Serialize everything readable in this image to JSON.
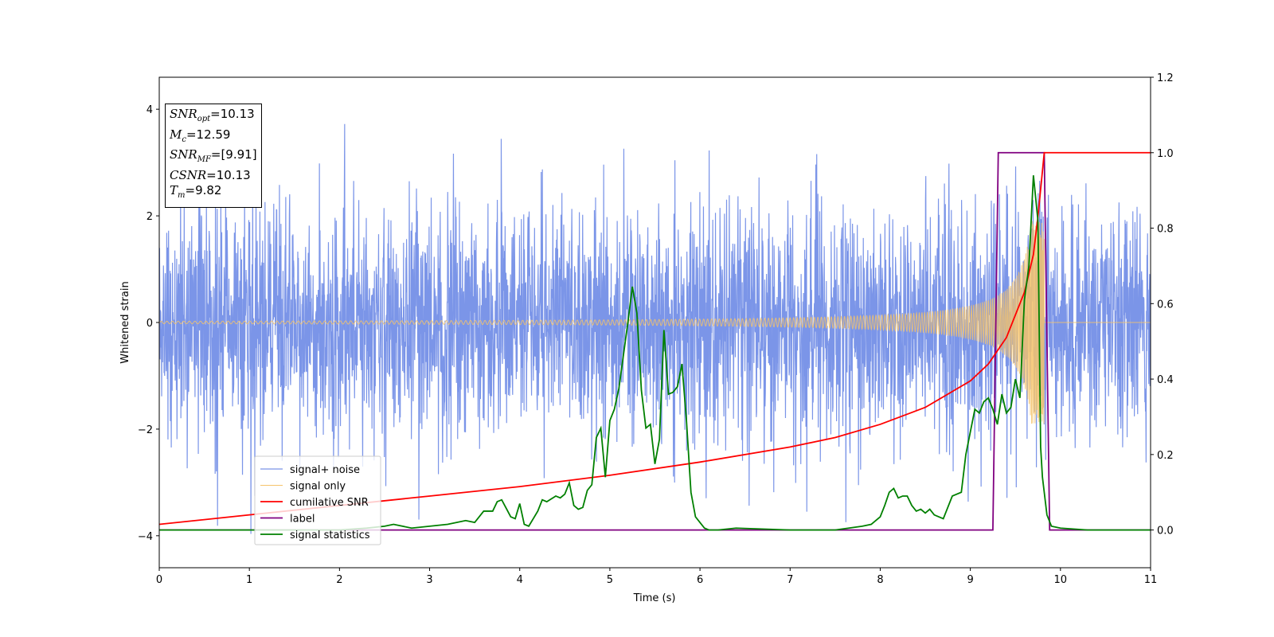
{
  "chart_data": {
    "type": "line",
    "xlabel": "Time (s)",
    "ylabel": "Whitened strain",
    "xlim": [
      0,
      11
    ],
    "ylim_left": [
      -4.6,
      4.6
    ],
    "ylim_right": [
      -0.1,
      1.2
    ],
    "x_ticks": [
      "0",
      "1",
      "2",
      "3",
      "4",
      "5",
      "6",
      "7",
      "8",
      "9",
      "10",
      "11"
    ],
    "y_ticks_left": [
      "4",
      "2",
      "0",
      "−2",
      "−4"
    ],
    "y_ticks_right": [
      "1.2",
      "1.0",
      "0.8",
      "0.6",
      "0.4",
      "0.2",
      "0.0"
    ],
    "grid": false,
    "legend_position": "lower-left",
    "series": [
      {
        "name": "signal+ noise",
        "color": "#7b95e8",
        "axis": "left",
        "kind": "gaussian-noise",
        "std": 1.0,
        "approx_range": [
          -4.1,
          4.1
        ]
      },
      {
        "name": "signal only",
        "color": "#f5c36b",
        "axis": "left",
        "kind": "chirp",
        "merger_time": 9.82,
        "peak_amplitude": 1.9
      },
      {
        "name": "cumilative SNR",
        "color": "#ff0000",
        "axis": "right",
        "x": [
          0,
          1,
          2,
          3,
          4,
          5,
          6,
          7,
          7.5,
          8,
          8.5,
          9,
          9.2,
          9.4,
          9.6,
          9.7,
          9.75,
          9.82,
          11
        ],
        "y": [
          0.015,
          0.04,
          0.065,
          0.09,
          0.115,
          0.145,
          0.18,
          0.22,
          0.245,
          0.28,
          0.325,
          0.395,
          0.44,
          0.51,
          0.63,
          0.73,
          0.83,
          1.0,
          1.0
        ]
      },
      {
        "name": "label",
        "color": "#800080",
        "axis": "right",
        "x": [
          0,
          9.25,
          9.31,
          9.82,
          9.88,
          11
        ],
        "y": [
          0,
          0,
          1,
          1,
          0,
          0
        ]
      },
      {
        "name": "signal statistics",
        "color": "#008000",
        "axis": "right",
        "x": [
          0,
          1,
          2,
          2.3,
          2.5,
          2.6,
          2.8,
          3.0,
          3.2,
          3.4,
          3.5,
          3.6,
          3.7,
          3.75,
          3.8,
          3.9,
          3.95,
          4.0,
          4.05,
          4.1,
          4.15,
          4.2,
          4.25,
          4.3,
          4.4,
          4.45,
          4.5,
          4.55,
          4.6,
          4.65,
          4.7,
          4.75,
          4.8,
          4.85,
          4.9,
          4.95,
          5.0,
          5.05,
          5.1,
          5.2,
          5.25,
          5.3,
          5.35,
          5.4,
          5.45,
          5.5,
          5.55,
          5.6,
          5.65,
          5.7,
          5.75,
          5.8,
          5.85,
          5.9,
          5.95,
          6.0,
          6.05,
          6.1,
          6.2,
          6.4,
          7.0,
          7.5,
          7.8,
          7.9,
          7.95,
          8.0,
          8.05,
          8.1,
          8.15,
          8.2,
          8.25,
          8.3,
          8.35,
          8.4,
          8.45,
          8.5,
          8.55,
          8.6,
          8.65,
          8.7,
          8.75,
          8.8,
          8.9,
          8.95,
          9.0,
          9.05,
          9.1,
          9.15,
          9.2,
          9.25,
          9.3,
          9.35,
          9.4,
          9.45,
          9.5,
          9.55,
          9.6,
          9.65,
          9.7,
          9.75,
          9.78,
          9.8,
          9.85,
          9.9,
          10.0,
          10.3,
          11
        ],
        "y": [
          0,
          0,
          0,
          0.005,
          0.01,
          0.015,
          0.005,
          0.01,
          0.015,
          0.025,
          0.02,
          0.05,
          0.05,
          0.075,
          0.08,
          0.035,
          0.03,
          0.07,
          0.015,
          0.01,
          0.03,
          0.05,
          0.08,
          0.075,
          0.09,
          0.085,
          0.095,
          0.125,
          0.065,
          0.055,
          0.06,
          0.105,
          0.12,
          0.245,
          0.27,
          0.14,
          0.29,
          0.32,
          0.375,
          0.55,
          0.645,
          0.575,
          0.37,
          0.27,
          0.28,
          0.175,
          0.24,
          0.53,
          0.36,
          0.365,
          0.38,
          0.44,
          0.29,
          0.1,
          0.035,
          0.02,
          0.005,
          0,
          0,
          0.005,
          0,
          0,
          0.01,
          0.015,
          0.025,
          0.035,
          0.065,
          0.1,
          0.11,
          0.085,
          0.09,
          0.09,
          0.065,
          0.05,
          0.055,
          0.045,
          0.055,
          0.04,
          0.035,
          0.03,
          0.06,
          0.09,
          0.1,
          0.2,
          0.26,
          0.32,
          0.31,
          0.34,
          0.35,
          0.32,
          0.28,
          0.36,
          0.31,
          0.325,
          0.4,
          0.35,
          0.61,
          0.7,
          0.94,
          0.82,
          0.22,
          0.14,
          0.04,
          0.01,
          0.005,
          0,
          0
        ]
      }
    ]
  },
  "info_box": {
    "snr_opt_sym": "SNR",
    "snr_opt_sub": "opt",
    "snr_opt_val": "=10.13",
    "mc_sym": "M",
    "mc_sub": "c",
    "mc_val": "=12.59",
    "snr_mf_sym": "SNR",
    "snr_mf_sub": "MF",
    "snr_mf_val": "=[9.91]",
    "csnr_sym": "CSNR",
    "csnr_val": "=10.13",
    "tm_sym": "T",
    "tm_sub": "m",
    "tm_val": "=9.82"
  }
}
